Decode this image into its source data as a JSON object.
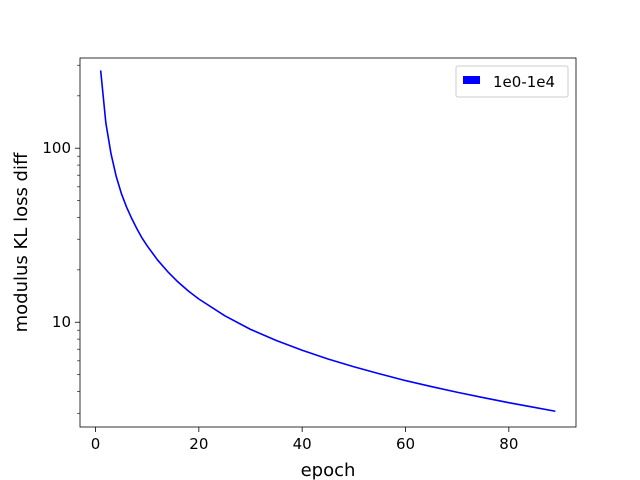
{
  "chart_data": {
    "type": "line",
    "title": "",
    "xlabel": "epoch",
    "ylabel": "modulus KL loss diff",
    "xlim": [
      -3,
      93
    ],
    "ylim": [
      2.5,
      330
    ],
    "yscale": "log",
    "grid": false,
    "legend_position": "top-right",
    "x_ticks": [
      0,
      20,
      40,
      60,
      80
    ],
    "x_tick_labels": [
      "0",
      "20",
      "40",
      "60",
      "80"
    ],
    "y_ticks": [
      10,
      100
    ],
    "y_tick_labels": [
      "10",
      "100"
    ],
    "series": [
      {
        "name": "1e0-1e4",
        "color": "#0000ff",
        "x": [
          1,
          2,
          3,
          4,
          5,
          6,
          7,
          8,
          9,
          10,
          12,
          14,
          16,
          18,
          20,
          25,
          30,
          35,
          40,
          45,
          50,
          55,
          60,
          65,
          70,
          75,
          80,
          85,
          89
        ],
        "y": [
          280,
          140,
          93,
          69,
          55,
          46,
          39.5,
          34.5,
          30.5,
          27.5,
          22.8,
          19.5,
          17.0,
          15.1,
          13.6,
          10.9,
          9.1,
          7.85,
          6.9,
          6.15,
          5.55,
          5.05,
          4.62,
          4.27,
          3.96,
          3.69,
          3.45,
          3.24,
          3.08
        ]
      }
    ]
  }
}
